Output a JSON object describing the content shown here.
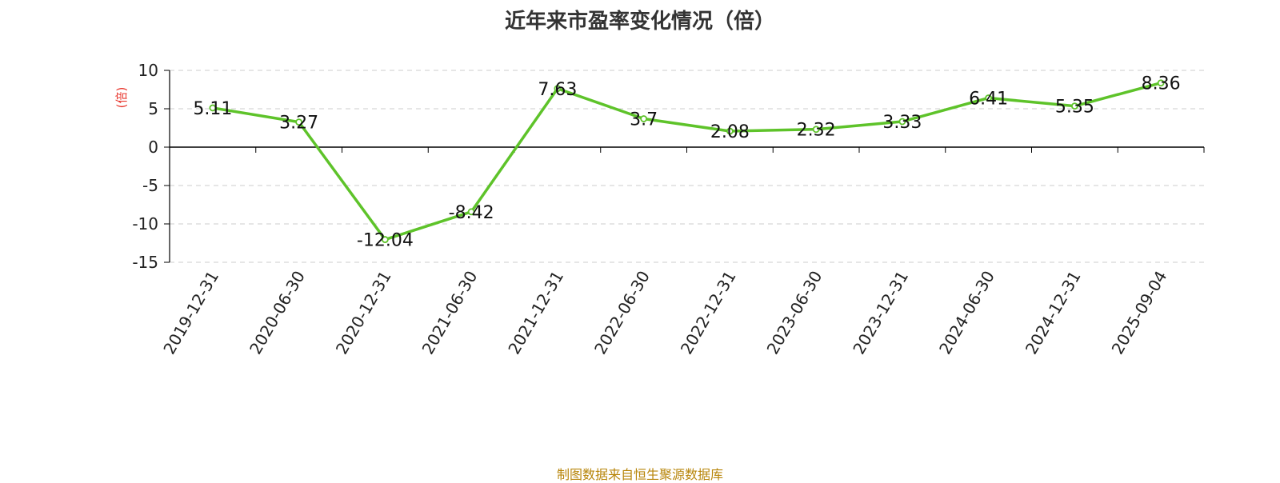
{
  "title": "近年来市盈率变化情况（倍）",
  "footer": "制图数据来自恒生聚源数据库",
  "colors": {
    "line": "#5ec32a",
    "ylabel": "#e8362d",
    "axis": "#000000",
    "grid": "#cccccc",
    "title": "#333333",
    "footer": "#b8860b"
  },
  "chart_data": {
    "type": "line",
    "title": "近年来市盈率变化情况（倍）",
    "xlabel": "",
    "ylabel": "(倍)",
    "ylim": [
      -15,
      10
    ],
    "yticks": [
      10,
      5,
      0,
      -5,
      -10,
      -15
    ],
    "grid": true,
    "legend": "none",
    "categories": [
      "2019-12-31",
      "2020-06-30",
      "2020-12-31",
      "2021-06-30",
      "2021-12-31",
      "2022-06-30",
      "2022-12-31",
      "2023-06-30",
      "2023-12-31",
      "2024-06-30",
      "2024-12-31",
      "2025-09-04"
    ],
    "series": [
      {
        "values": [
          5.11,
          3.27,
          -12.04,
          -8.42,
          7.63,
          3.7,
          2.08,
          2.32,
          3.33,
          6.41,
          5.35,
          8.36
        ],
        "labels": [
          "5.11",
          "3.27",
          "-12.04",
          "-8.42",
          "7.63",
          "3.7",
          "2.08",
          "2.32",
          "3.33",
          "6.41",
          "5.35",
          "8.36"
        ]
      }
    ]
  }
}
